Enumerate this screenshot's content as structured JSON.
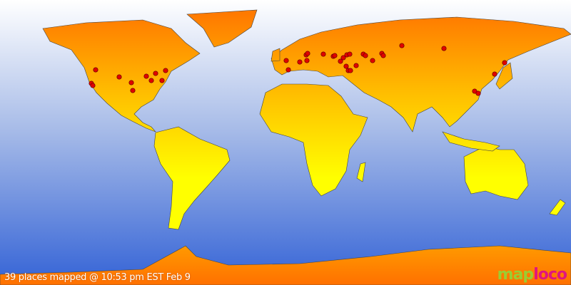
{
  "caption": "39 places mapped @ 10:53 pm EST Feb 9",
  "logo": {
    "part1": "map",
    "part2": "loco"
  },
  "colors": {
    "ocean_top": "#ffffff",
    "ocean_bottom": "#3a6ad8",
    "land_top": "#ff7a00",
    "land_bottom": "#ffff00",
    "marker": "#e00000"
  },
  "places_count": 39
}
